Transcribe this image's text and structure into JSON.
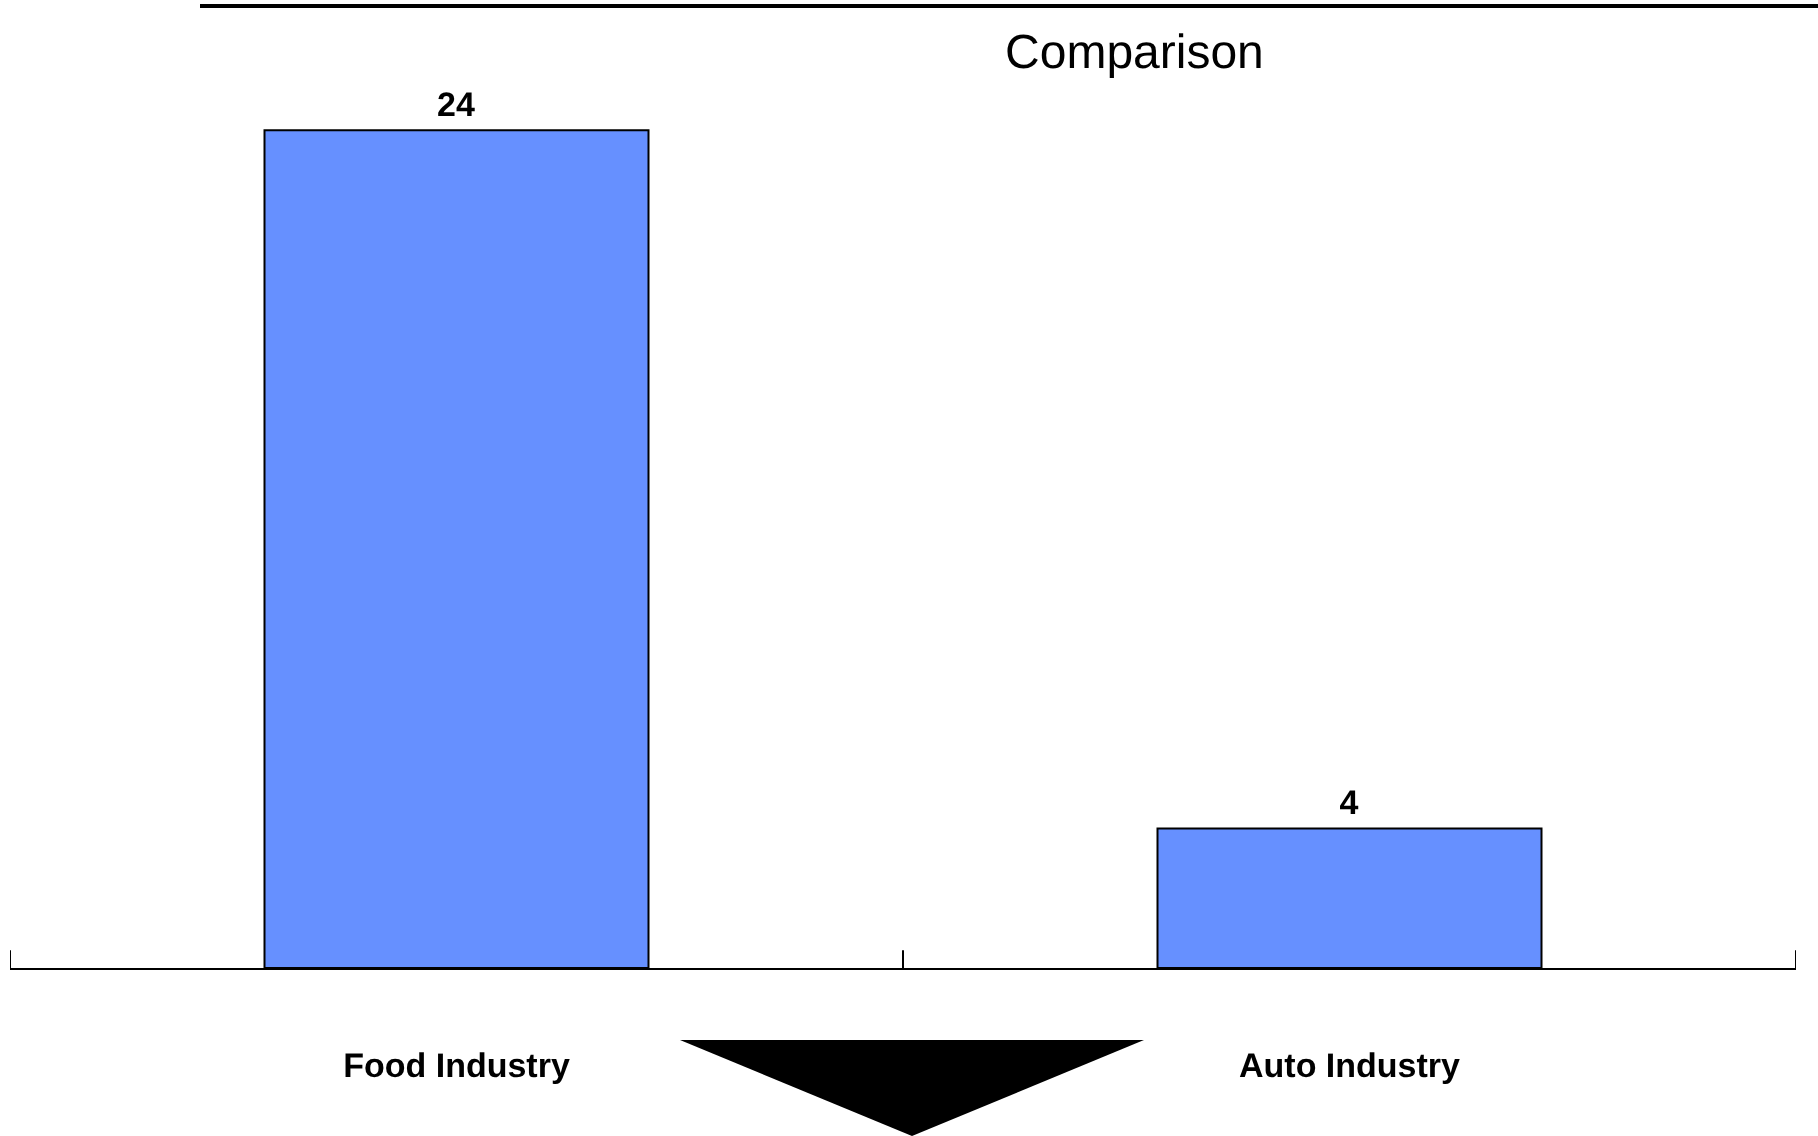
{
  "chart_data": {
    "type": "bar",
    "title": "Comparison",
    "categories": [
      "Food Industry",
      "Auto Industry"
    ],
    "values": [
      24,
      4
    ],
    "color": "#6690ff",
    "data_labels": true,
    "grid": false
  }
}
